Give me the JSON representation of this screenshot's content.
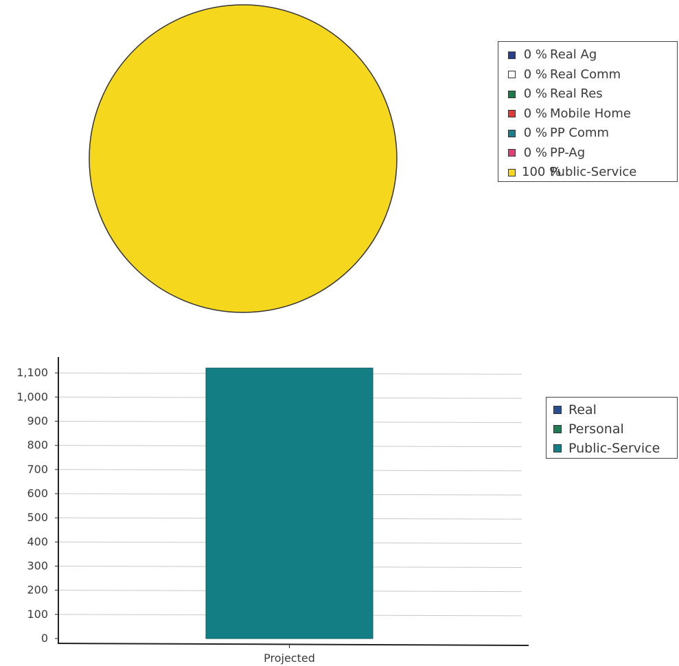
{
  "chart_data": [
    {
      "type": "pie",
      "slices": [
        {
          "label": "Real Ag",
          "pct_label": "0 %",
          "value": 0,
          "color": "#2b3f8f"
        },
        {
          "label": "Real Comm",
          "pct_label": "0 %",
          "value": 0,
          "color": "#ffffff"
        },
        {
          "label": "Real Res",
          "pct_label": "0 %",
          "value": 0,
          "color": "#1f7a4a"
        },
        {
          "label": "Mobile Home",
          "pct_label": "0 %",
          "value": 0,
          "color": "#e03a3a"
        },
        {
          "label": "PP Comm",
          "pct_label": "0 %",
          "value": 0,
          "color": "#1a7f8a"
        },
        {
          "label": "PP-Ag",
          "pct_label": "0 %",
          "value": 0,
          "color": "#e0407a"
        },
        {
          "label": "Public-Service",
          "pct_label": "100 %",
          "value": 100,
          "color": "#f5d81e"
        }
      ],
      "legend_position": "right"
    },
    {
      "type": "bar",
      "categories": [
        "Projected"
      ],
      "series": [
        {
          "name": "Real",
          "values": [
            0
          ],
          "color": "#2a4f8f"
        },
        {
          "name": "Personal",
          "values": [
            0
          ],
          "color": "#1f7a55"
        },
        {
          "name": "Public-Service",
          "values": [
            1120
          ],
          "color": "#137f85"
        }
      ],
      "stacked": true,
      "ylim": [
        0,
        1100
      ],
      "yticks": [
        "0",
        "100",
        "200",
        "300",
        "400",
        "500",
        "600",
        "700",
        "800",
        "900",
        "1,000",
        "1,100"
      ],
      "grid": true,
      "legend_position": "right"
    }
  ]
}
